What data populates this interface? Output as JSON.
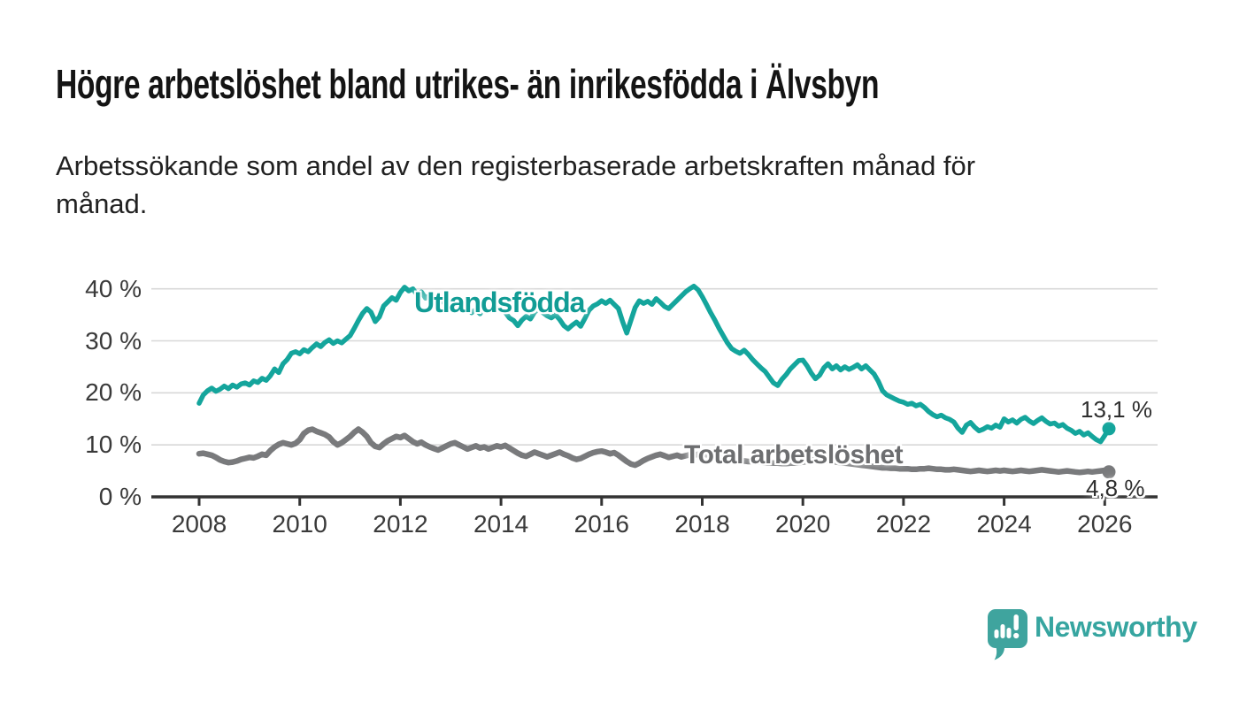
{
  "header": {
    "title": "Högre arbetslöshet bland utrikes- än inrikesfödda i Älvsbyn",
    "subtitle": "Arbetssökande som andel av den registerbaserade arbetskraften månad för månad.",
    "subtitle_lines": [
      "Arbetssökande som andel av den registerbaserade arbetskraften månad för",
      "månad."
    ]
  },
  "footer": {
    "brand_name": "Newsworthy",
    "logo_icon": "speech-bubble-bar-chart-icon"
  },
  "colors": {
    "teal_line": "#14a59c",
    "gray_line": "#797a7c",
    "teal_label": "#119c95",
    "gray_label": "#6d6e70",
    "axis": "#333333",
    "grid": "#d8d8d8",
    "text": "#141414",
    "brand": "#36a5a0"
  },
  "chart_data": {
    "type": "line",
    "title": "Högre arbetslöshet bland utrikes- än inrikesfödda i Älvsbyn",
    "subtitle": "Arbetssökande som andel av den registerbaserade arbetskraften månad för månad.",
    "x_unit": "decimal year, monthly points from January 2008 to February 2026",
    "x_start": 2008.0,
    "x_interval_months": 1,
    "xlim": [
      2007.05,
      2027.05
    ],
    "ylim": [
      0,
      43
    ],
    "grid": "horizontal",
    "x_ticks": [
      2008,
      2010,
      2012,
      2014,
      2016,
      2018,
      2020,
      2022,
      2024,
      2026
    ],
    "x_tick_labels": [
      "2008",
      "2010",
      "2012",
      "2014",
      "2016",
      "2018",
      "2020",
      "2022",
      "2024",
      "2026"
    ],
    "y_ticks": [
      0,
      10,
      20,
      30,
      40
    ],
    "y_tick_labels": [
      "0 %",
      "10 %",
      "20 %",
      "30 %",
      "40 %"
    ],
    "legend_position": "inline-labels-on-lines",
    "series": [
      {
        "id": "utlandsfodda",
        "name": "Utlandsfödda",
        "color": "#14a59c",
        "end_label": "13,1 %",
        "last_value": 13.1,
        "values": [
          18.0,
          19.6,
          20.4,
          20.9,
          20.3,
          20.7,
          21.3,
          20.8,
          21.5,
          21.1,
          21.7,
          21.9,
          21.5,
          22.3,
          22.0,
          22.8,
          22.4,
          23.3,
          24.6,
          23.9,
          25.6,
          26.4,
          27.6,
          27.9,
          27.5,
          28.3,
          27.9,
          28.7,
          29.4,
          28.9,
          29.7,
          30.2,
          29.5,
          30.0,
          29.6,
          30.3,
          31.0,
          32.4,
          33.9,
          35.3,
          36.2,
          35.5,
          33.7,
          34.6,
          36.7,
          37.5,
          38.3,
          37.8,
          39.3,
          40.3,
          39.6,
          40.0,
          38.8,
          39.4,
          38.2,
          38.8,
          37.6,
          38.2,
          37.5,
          37.9,
          37.2,
          36.6,
          37.3,
          36.1,
          36.8,
          35.4,
          36.0,
          35.2,
          36.4,
          35.8,
          36.5,
          36.0,
          36.7,
          35.5,
          34.4,
          33.9,
          32.9,
          34.0,
          34.7,
          34.2,
          35.5,
          36.1,
          35.4,
          34.8,
          34.4,
          35.0,
          34.1,
          32.9,
          32.3,
          33.0,
          33.6,
          32.8,
          34.3,
          35.9,
          36.7,
          37.1,
          37.7,
          37.2,
          37.8,
          37.0,
          36.2,
          33.7,
          31.5,
          34.0,
          36.4,
          37.7,
          37.2,
          37.6,
          37.0,
          38.1,
          37.4,
          36.6,
          36.2,
          37.0,
          37.8,
          38.6,
          39.4,
          40.0,
          40.5,
          39.8,
          38.5,
          37.0,
          35.4,
          34.0,
          32.4,
          31.0,
          29.6,
          28.5,
          28.0,
          27.6,
          28.2,
          27.4,
          26.4,
          25.6,
          24.8,
          24.1,
          23.0,
          21.9,
          21.4,
          22.6,
          23.5,
          24.6,
          25.4,
          26.2,
          26.3,
          25.2,
          23.8,
          22.7,
          23.4,
          24.8,
          25.6,
          24.6,
          25.2,
          24.4,
          25.0,
          24.5,
          24.9,
          25.4,
          24.6,
          25.2,
          24.4,
          23.6,
          22.2,
          20.4,
          19.6,
          19.2,
          18.8,
          18.4,
          18.2,
          17.8,
          18.0,
          17.5,
          17.8,
          17.2,
          16.4,
          15.8,
          15.4,
          15.7,
          15.2,
          14.9,
          14.4,
          13.2,
          12.4,
          13.8,
          14.3,
          13.4,
          12.7,
          13.0,
          13.5,
          13.2,
          13.8,
          13.4,
          15.0,
          14.4,
          14.8,
          14.2,
          14.9,
          15.3,
          14.6,
          14.1,
          14.7,
          15.2,
          14.5,
          14.0,
          14.2,
          13.6,
          13.9,
          13.2,
          12.8,
          12.2,
          12.6,
          11.9,
          12.3,
          11.6,
          11.0,
          10.6,
          11.8,
          13.1
        ]
      },
      {
        "id": "total-arbetsloshet",
        "name": "Total arbetslöshet",
        "color": "#797a7c",
        "end_label": "4,8 %",
        "last_value": 4.8,
        "values": [
          8.3,
          8.4,
          8.2,
          8.0,
          7.6,
          7.1,
          6.8,
          6.6,
          6.7,
          6.9,
          7.2,
          7.4,
          7.6,
          7.5,
          7.8,
          8.2,
          8.0,
          8.9,
          9.6,
          10.1,
          10.4,
          10.2,
          10.0,
          10.3,
          11.0,
          12.2,
          12.8,
          13.0,
          12.6,
          12.3,
          12.0,
          11.5,
          10.6,
          10.0,
          10.4,
          11.0,
          11.6,
          12.4,
          13.0,
          12.4,
          11.6,
          10.4,
          9.7,
          9.5,
          10.2,
          10.8,
          11.2,
          11.6,
          11.4,
          11.8,
          11.2,
          10.6,
          10.2,
          10.5,
          10.0,
          9.6,
          9.3,
          9.0,
          9.4,
          9.8,
          10.2,
          10.4,
          10.0,
          9.6,
          9.2,
          9.5,
          9.8,
          9.4,
          9.6,
          9.2,
          9.5,
          9.8,
          9.6,
          9.9,
          9.4,
          8.9,
          8.4,
          8.0,
          7.8,
          8.2,
          8.6,
          8.3,
          8.0,
          7.7,
          8.0,
          8.3,
          8.6,
          8.2,
          7.9,
          7.5,
          7.2,
          7.4,
          7.8,
          8.2,
          8.5,
          8.7,
          8.8,
          8.6,
          8.3,
          8.5,
          8.0,
          7.4,
          6.8,
          6.3,
          6.1,
          6.5,
          7.0,
          7.4,
          7.7,
          8.0,
          8.2,
          7.9,
          7.6,
          7.8,
          8.0,
          7.7,
          7.9,
          8.1,
          8.0,
          8.2,
          8.3,
          8.1,
          7.9,
          7.7,
          7.5,
          7.4,
          7.2,
          7.1,
          7.0,
          6.9,
          6.9,
          6.8,
          6.8,
          6.7,
          6.7,
          6.6,
          6.6,
          6.5,
          6.5,
          6.4,
          6.4,
          6.5,
          6.5,
          6.6,
          6.7,
          6.8,
          7.0,
          7.2,
          7.1,
          7.0,
          6.9,
          6.8,
          6.7,
          6.6,
          6.5,
          6.4,
          6.3,
          6.2,
          6.1,
          6.0,
          5.9,
          5.8,
          5.7,
          5.6,
          5.6,
          5.5,
          5.5,
          5.4,
          5.4,
          5.4,
          5.3,
          5.3,
          5.4,
          5.4,
          5.5,
          5.4,
          5.3,
          5.3,
          5.2,
          5.2,
          5.3,
          5.2,
          5.1,
          5.0,
          4.9,
          5.0,
          5.1,
          5.0,
          4.9,
          5.0,
          5.1,
          5.0,
          5.1,
          5.0,
          4.9,
          5.0,
          5.1,
          5.0,
          4.9,
          5.0,
          5.1,
          5.2,
          5.1,
          5.0,
          4.9,
          4.8,
          4.9,
          5.0,
          4.9,
          4.8,
          4.7,
          4.8,
          4.9,
          4.8,
          4.9,
          5.0,
          5.1,
          4.8
        ]
      }
    ]
  }
}
